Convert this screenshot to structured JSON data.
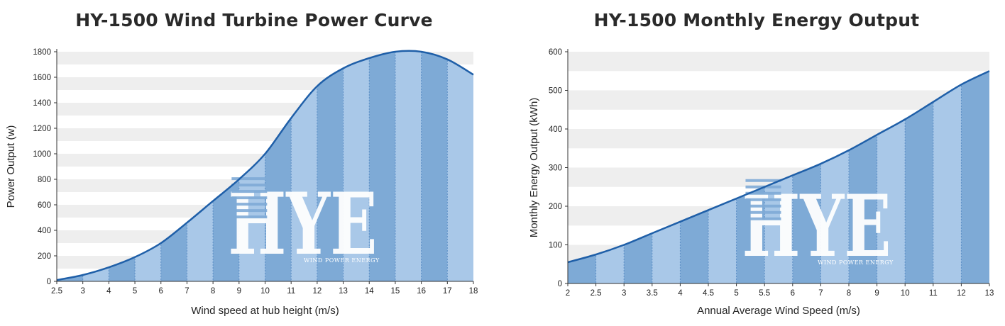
{
  "chart_data": [
    {
      "type": "area",
      "title": "HY-1500 Wind Turbine Power Curve",
      "xlabel": "Wind speed at hub height (m/s)",
      "ylabel": "Power Output (w)",
      "categories": [
        "2.5",
        "3",
        "4",
        "5",
        "6",
        "7",
        "8",
        "9",
        "10",
        "11",
        "12",
        "13",
        "14",
        "15",
        "16",
        "17",
        "18"
      ],
      "values": [
        10,
        50,
        110,
        190,
        300,
        460,
        630,
        800,
        1000,
        1280,
        1530,
        1670,
        1750,
        1800,
        1800,
        1740,
        1620
      ],
      "ylim": [
        0,
        1800
      ],
      "yticks": [
        0,
        200,
        400,
        600,
        800,
        1000,
        1200,
        1400,
        1600,
        1800
      ],
      "grid": "horizontal bands",
      "watermark": {
        "text": "HYE",
        "subtext": "WIND POWER ENERGY"
      },
      "colors": {
        "line": "#1f5fa8",
        "fill_dark": "#7eaad6",
        "fill_light": "#a9c8e8",
        "band": "#eeeeee"
      }
    },
    {
      "type": "area",
      "title": "HY-1500 Monthly Energy Output",
      "xlabel": "Annual Average Wind Speed (m/s)",
      "ylabel": "Monthly Energy Output (kWh)",
      "categories": [
        "2",
        "2.5",
        "3",
        "3.5",
        "4",
        "4.5",
        "5",
        "5.5",
        "6",
        "7",
        "8",
        "9",
        "10",
        "11",
        "12",
        "13"
      ],
      "values": [
        55,
        75,
        100,
        130,
        160,
        190,
        220,
        250,
        280,
        310,
        345,
        385,
        425,
        470,
        515,
        550
      ],
      "ylim": [
        0,
        600
      ],
      "yticks": [
        0,
        100,
        200,
        300,
        400,
        500,
        600
      ],
      "grid": "horizontal bands",
      "watermark": {
        "text": "HYE",
        "subtext": "WIND POWER ENERGY"
      },
      "colors": {
        "line": "#1f5fa8",
        "fill_dark": "#7eaad6",
        "fill_light": "#a9c8e8",
        "band": "#eeeeee"
      }
    }
  ]
}
